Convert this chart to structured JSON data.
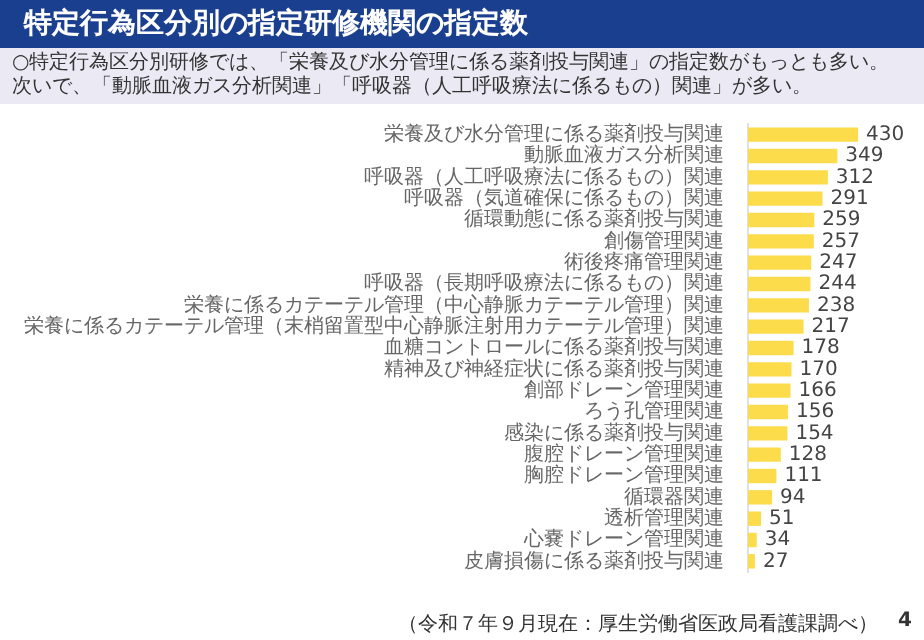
{
  "chart_data": {
    "type": "bar",
    "orientation": "horizontal",
    "title": "特定行為区分別の指定研修機関の指定数",
    "subtitle": "○特定行為区分別研修では、「栄養及び水分管理に係る薬剤投与関連」の指定数がもっとも多い。次いで、「動脈血液ガス分析関連」「呼吸器（人工呼吸療法に係るもの）関連」が多い。",
    "categories": [
      "栄養及び水分管理に係る薬剤投与関連",
      "動脈血液ガス分析関連",
      "呼吸器（人工呼吸療法に係るもの）関連",
      "呼吸器（気道確保に係るもの）関連",
      "循環動態に係る薬剤投与関連",
      "創傷管理関連",
      "術後疼痛管理関連",
      "呼吸器（長期呼吸療法に係るもの）関連",
      "栄養に係るカテーテル管理（中心静脈カテーテル管理）関連",
      "栄養に係るカテーテル管理（末梢留置型中心静脈注射用カテーテル管理）関連",
      "血糖コントロールに係る薬剤投与関連",
      "精神及び神経症状に係る薬剤投与関連",
      "創部ドレーン管理関連",
      "ろう孔管理関連",
      "感染に係る薬剤投与関連",
      "腹腔ドレーン管理関連",
      "胸腔ドレーン管理関連",
      "循環器関連",
      "透析管理関連",
      "心嚢ドレーン管理関連",
      "皮膚損傷に係る薬剤投与関連"
    ],
    "values": [
      430,
      349,
      312,
      291,
      259,
      257,
      247,
      244,
      238,
      217,
      178,
      170,
      166,
      156,
      154,
      128,
      111,
      94,
      51,
      34,
      27
    ],
    "color": "#fcdc4a",
    "data_labels": true,
    "legend": false,
    "annotations": [
      "（令和７年９月現在：厚生労働省医政局看護課調べ）",
      "4"
    ]
  }
}
